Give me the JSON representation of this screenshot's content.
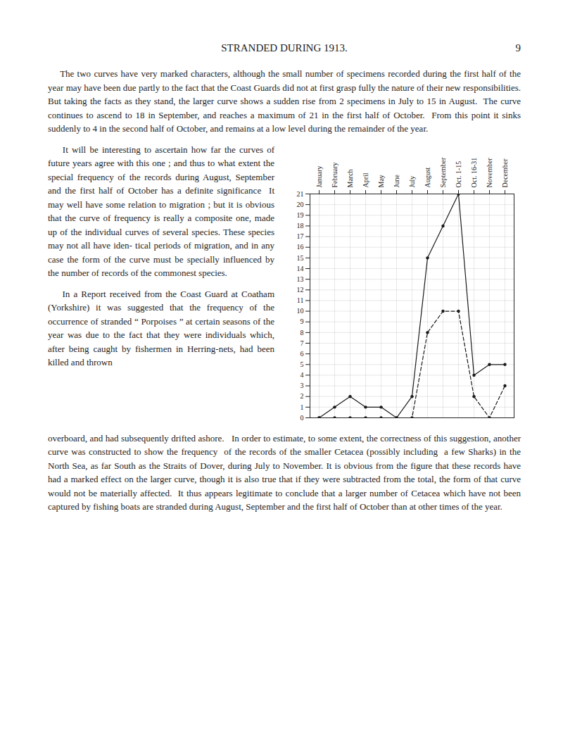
{
  "chart_data": {
    "type": "line",
    "title": "STRANDED  DURING  1913.",
    "categories": [
      "January",
      "February",
      "March",
      "April",
      "May",
      "June",
      "July",
      "August",
      "September",
      "Oct. 1-15",
      "Oct. 16-31",
      "November",
      "December"
    ],
    "series": [
      {
        "color": "#1a1a1a",
        "line_style": "solid",
        "marker": "circle",
        "values": [
          0,
          1,
          2,
          1,
          1,
          0,
          2,
          15,
          18,
          21,
          4,
          5,
          5
        ]
      },
      {
        "color": "#1a1a1a",
        "line_style": "dashed",
        "marker": "circle",
        "values": [
          0,
          0,
          0,
          0,
          0,
          0,
          0,
          8,
          10,
          10,
          2,
          0,
          3
        ]
      }
    ],
    "ylim": [
      0,
      21
    ],
    "yticks": [
      0,
      1,
      2,
      3,
      4,
      5,
      6,
      7,
      8,
      9,
      10,
      11,
      12,
      13,
      14,
      15,
      16,
      17,
      18,
      19,
      20,
      21
    ],
    "grid": true,
    "annotations": [
      "9",
      "    The two curves have very marked characters, although the small number of specimens recorded during the first half of the year may have been due partly to the fact that the Coast Guards did not at first grasp fully the nature of their new responsibilities.  But taking the facts as they stand, the larger curve shows a sudden rise from 2 specimens in July to 15 in August.  The curve continues to ascend to 18 in September, and reaches a maximum of 21 in the first half of October.  From this point it sinks suddenly to 4 in the second half of October, and remains at a low level during the remainder of the year.",
      "    It will be interesting to ascertain how far the curves of future years agree with this one ; and thus to what extent the special frequency of the records during August, September and the first half of October has a definite significance  It may well have some relation to migration ; but it is obvious that the curve of frequency is really a composite one, made up of the individual curves of several species. These species may not all have iden- tical periods of migration, and in any case the form of the curve must be specially influenced by the number of records of the commonest species.",
      "    In a Report received from the Coast Guard at Coatham (Yorkshire) it was suggested that the frequency of the occurrence of stranded “ Porpoises ” at certain seasons of the year was due to the fact that they were individuals which, after being caught by fishermen in Herring-nets, had been killed and thrown",
      "overboard, and had subsequently drifted ashore.   In order to estimate, to some extent, the correctness of this suggestion, another curve was constructed to show the frequency  of the records of the smaller Cetacea (possibly including  a few Sharks) in the North Sea, as far South as the Straits of Dover, during July to November. It is obvious from the figure that these records have had a marked effect on the larger curve, though it is also true that if they were subtracted from the total, the form of that curve would not be materially affected.  It thus appears legitimate to conclude that a larger number of Cetacea which have not been captured by fishing boats are stranded during August, September and the first half of October than at other times of the year."
    ]
  }
}
